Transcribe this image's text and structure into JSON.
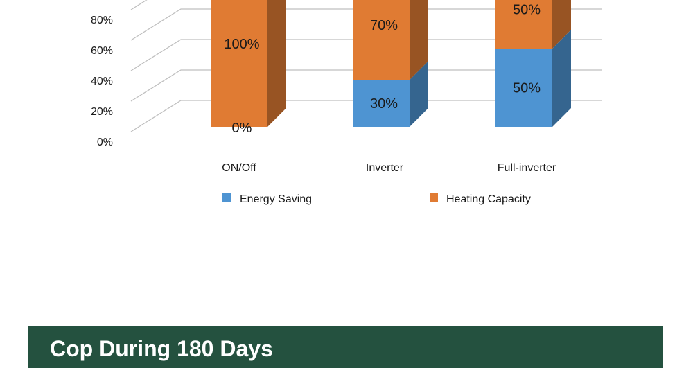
{
  "chart_data": {
    "type": "bar",
    "stacked": true,
    "three_d": true,
    "categories": [
      "ON/Off",
      "Inverter",
      "Full-inverter"
    ],
    "series": [
      {
        "name": "Energy Saving",
        "values": [
          0,
          30,
          50
        ],
        "labels": [
          "0%",
          "30%",
          "50%"
        ],
        "color": "#4e94d2"
      },
      {
        "name": "Heating Capacity",
        "values": [
          100,
          70,
          50
        ],
        "labels": [
          "100%",
          "70%",
          "50%"
        ],
        "color": "#e07b33"
      }
    ],
    "y_ticks": [
      "0%",
      "20%",
      "40%",
      "60%",
      "80%"
    ],
    "ylim": [
      0,
      100
    ],
    "grid": true,
    "legend_position": "bottom"
  },
  "footer": {
    "title": "Cop During 180 Days"
  }
}
